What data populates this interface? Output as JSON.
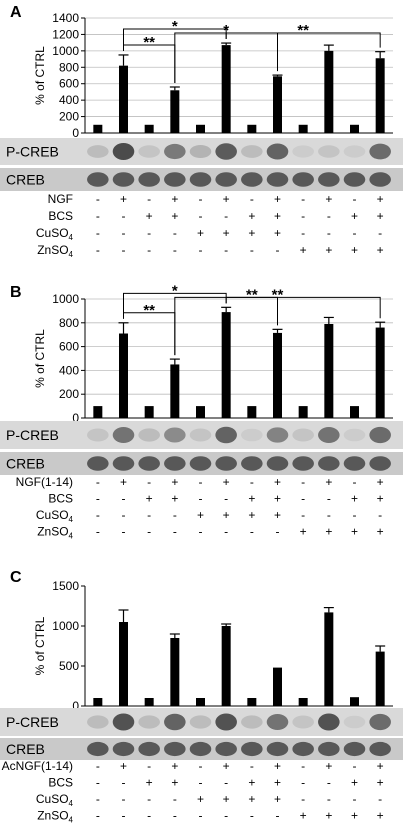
{
  "chart_data": [
    {
      "panel": "A",
      "type": "bar",
      "ylabel": "% of CTRL",
      "yticks": [
        0,
        200,
        400,
        600,
        800,
        1000,
        1200,
        1400
      ],
      "ylim": [
        0,
        1400
      ],
      "grid": true,
      "lanes": 12,
      "values": [
        100,
        820,
        100,
        520,
        100,
        1070,
        100,
        690,
        100,
        1000,
        100,
        910
      ],
      "errors": [
        0,
        130,
        0,
        40,
        0,
        25,
        0,
        15,
        0,
        70,
        0,
        80
      ],
      "significance": [
        {
          "from": 2,
          "to": 6,
          "label": "*"
        },
        {
          "from": 2,
          "to": 4,
          "label": "**"
        },
        {
          "from": 6,
          "to": 12,
          "label": "**"
        },
        {
          "from": 4,
          "to": 8,
          "label": "*"
        }
      ],
      "blots": [
        {
          "label": "P-CREB",
          "intensity": [
            0.15,
            0.85,
            0.1,
            0.55,
            0.2,
            0.75,
            0.15,
            0.7,
            0.05,
            0.1,
            0.05,
            0.65
          ]
        },
        {
          "label": "CREB",
          "intensity": [
            0.75,
            0.75,
            0.75,
            0.75,
            0.75,
            0.75,
            0.75,
            0.75,
            0.75,
            0.75,
            0.75,
            0.75
          ]
        }
      ],
      "treatments": [
        {
          "label": "NGF",
          "signs": [
            "-",
            "+",
            "-",
            "+",
            "-",
            "+",
            "-",
            "+",
            "-",
            "+",
            "-",
            "+"
          ]
        },
        {
          "label": "BCS",
          "signs": [
            "-",
            "-",
            "+",
            "+",
            "-",
            "-",
            "+",
            "+",
            "-",
            "-",
            "+",
            "+"
          ]
        },
        {
          "label": "CuSO",
          "sub": "4",
          "signs": [
            "-",
            "-",
            "-",
            "-",
            "+",
            "+",
            "+",
            "+",
            "-",
            "-",
            "-",
            "-"
          ]
        },
        {
          "label": "ZnSO",
          "sub": "4",
          "signs": [
            "-",
            "-",
            "-",
            "-",
            "-",
            "-",
            "-",
            "-",
            "+",
            "+",
            "+",
            "+"
          ]
        }
      ]
    },
    {
      "panel": "B",
      "type": "bar",
      "ylabel": "% of CTRL",
      "yticks": [
        0,
        200,
        400,
        600,
        800,
        1000
      ],
      "ylim": [
        0,
        1000
      ],
      "grid": true,
      "lanes": 12,
      "values": [
        100,
        710,
        100,
        450,
        100,
        890,
        100,
        715,
        100,
        790,
        100,
        760
      ],
      "errors": [
        0,
        90,
        0,
        45,
        0,
        40,
        0,
        30,
        0,
        55,
        0,
        45
      ],
      "significance": [
        {
          "from": 2,
          "to": 6,
          "label": "*"
        },
        {
          "from": 2,
          "to": 4,
          "label": "**"
        },
        {
          "from": 4,
          "to": 12,
          "label": "**"
        },
        {
          "from": 6,
          "to": 8,
          "label": "**"
        }
      ],
      "blots": [
        {
          "label": "P-CREB",
          "intensity": [
            0.1,
            0.6,
            0.15,
            0.45,
            0.1,
            0.7,
            0.05,
            0.5,
            0.1,
            0.6,
            0.05,
            0.65
          ]
        },
        {
          "label": "CREB",
          "intensity": [
            0.75,
            0.75,
            0.75,
            0.75,
            0.75,
            0.75,
            0.75,
            0.75,
            0.75,
            0.75,
            0.75,
            0.75
          ]
        }
      ],
      "treatments": [
        {
          "label": "NGF(1-14)",
          "signs": [
            "-",
            "+",
            "-",
            "+",
            "-",
            "+",
            "-",
            "+",
            "-",
            "+",
            "-",
            "+"
          ]
        },
        {
          "label": "BCS",
          "signs": [
            "-",
            "-",
            "+",
            "+",
            "-",
            "-",
            "+",
            "+",
            "-",
            "-",
            "+",
            "+"
          ]
        },
        {
          "label": "CuSO",
          "sub": "4",
          "signs": [
            "-",
            "-",
            "-",
            "-",
            "+",
            "+",
            "+",
            "+",
            "-",
            "-",
            "-",
            "-"
          ]
        },
        {
          "label": "ZnSO",
          "sub": "4",
          "signs": [
            "-",
            "-",
            "-",
            "-",
            "-",
            "-",
            "-",
            "-",
            "+",
            "+",
            "+",
            "+"
          ]
        }
      ]
    },
    {
      "panel": "C",
      "type": "bar",
      "ylabel": "% of CTRL",
      "yticks": [
        0,
        500,
        1000,
        1500
      ],
      "ylim": [
        0,
        1500
      ],
      "grid": false,
      "lanes": 12,
      "values": [
        100,
        1050,
        100,
        850,
        100,
        1000,
        100,
        480,
        100,
        1170,
        110,
        680
      ],
      "errors": [
        0,
        150,
        0,
        50,
        0,
        25,
        0,
        0,
        0,
        60,
        0,
        70
      ],
      "significance": [],
      "blots": [
        {
          "label": "P-CREB",
          "intensity": [
            0.15,
            0.8,
            0.15,
            0.7,
            0.15,
            0.8,
            0.15,
            0.6,
            0.1,
            0.8,
            0.05,
            0.65
          ]
        },
        {
          "label": "CREB",
          "intensity": [
            0.75,
            0.75,
            0.75,
            0.75,
            0.75,
            0.75,
            0.75,
            0.75,
            0.75,
            0.75,
            0.75,
            0.75
          ]
        }
      ],
      "treatments": [
        {
          "label": "AcNGF(1-14)",
          "signs": [
            "-",
            "+",
            "-",
            "+",
            "-",
            "+",
            "-",
            "+",
            "-",
            "+",
            "-",
            "+"
          ]
        },
        {
          "label": "BCS",
          "signs": [
            "-",
            "-",
            "+",
            "+",
            "-",
            "-",
            "+",
            "+",
            "-",
            "-",
            "+",
            "+"
          ]
        },
        {
          "label": "CuSO",
          "sub": "4",
          "signs": [
            "-",
            "-",
            "-",
            "-",
            "+",
            "+",
            "+",
            "+",
            "-",
            "-",
            "-",
            "-"
          ]
        },
        {
          "label": "ZnSO",
          "sub": "4",
          "signs": [
            "-",
            "-",
            "-",
            "-",
            "-",
            "-",
            "-",
            "-",
            "+",
            "+",
            "+",
            "+"
          ]
        }
      ]
    }
  ]
}
